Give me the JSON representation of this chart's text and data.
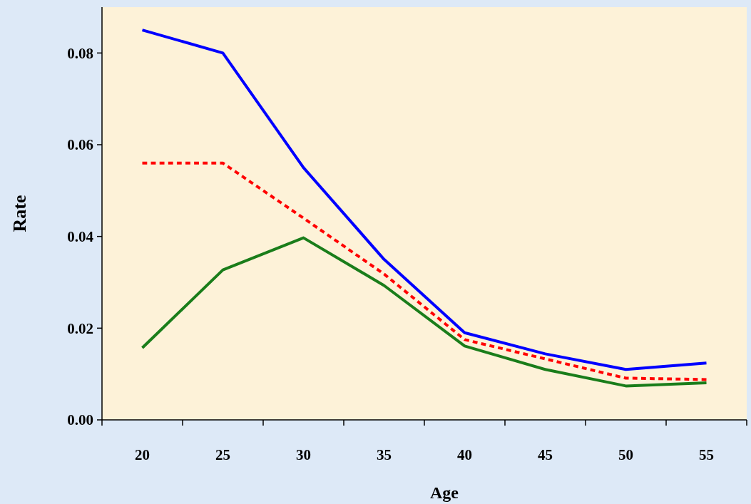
{
  "chart_data": {
    "type": "line",
    "xlabel": "Age",
    "ylabel": "Rate",
    "categories": [
      "20",
      "25",
      "30",
      "35",
      "40",
      "45",
      "50",
      "55"
    ],
    "series": [
      {
        "color": "#0000ff",
        "line_style": "solid",
        "values": [
          0.085,
          0.08,
          0.055,
          0.035,
          0.019,
          0.0144,
          0.011,
          0.0124
        ]
      },
      {
        "color": "#ff0000",
        "line_style": "dashed",
        "values": [
          0.056,
          0.056,
          0.044,
          0.0318,
          0.0175,
          0.0133,
          0.0091,
          0.0088
        ]
      },
      {
        "color": "#1a7d1a",
        "line_style": "solid",
        "values": [
          0.0157,
          0.0327,
          0.0397,
          0.0293,
          0.0161,
          0.011,
          0.0074,
          0.0081
        ]
      }
    ],
    "ylim": [
      0,
      0.09
    ],
    "yticks": [
      {
        "value": 0,
        "label": "0.00"
      },
      {
        "value": 0.02,
        "label": "0.02"
      },
      {
        "value": 0.04,
        "label": "0.04"
      },
      {
        "value": 0.06,
        "label": "0.06"
      },
      {
        "value": 0.08,
        "label": "0.08"
      }
    ],
    "grid": false,
    "marker": "none"
  }
}
